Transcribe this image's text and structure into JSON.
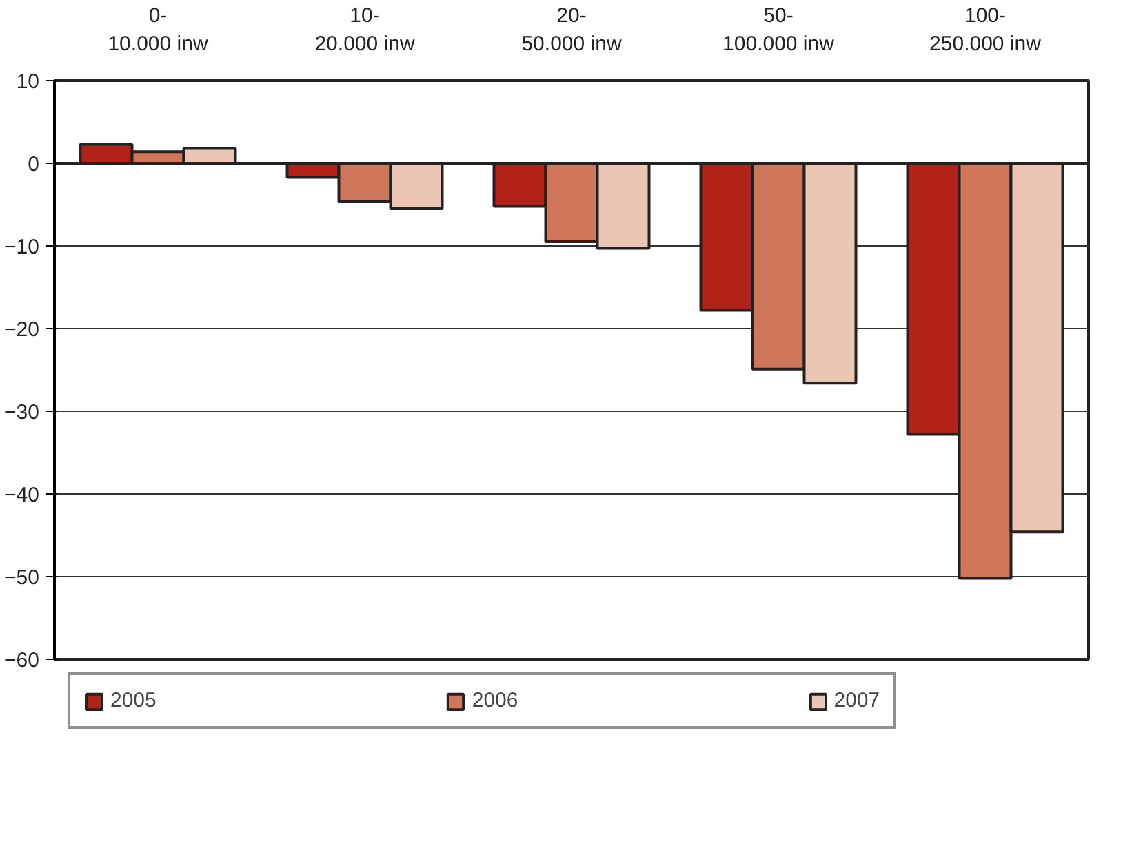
{
  "chart_data": {
    "type": "bar",
    "categories": [
      "0-\n10.000 inw",
      "10-\n20.000 inw",
      "20-\n50.000 inw",
      "50-\n100.000 inw",
      "100-\n250.000 inw"
    ],
    "series": [
      {
        "name": "2005",
        "color": "#b12318",
        "values": [
          2.3,
          -1.7,
          -5.2,
          -17.8,
          -32.8
        ]
      },
      {
        "name": "2006",
        "color": "#d0765a",
        "values": [
          1.4,
          -4.6,
          -9.5,
          -24.9,
          -50.2
        ]
      },
      {
        "name": "2007",
        "color": "#ecc6b4",
        "values": [
          1.8,
          -5.5,
          -10.3,
          -26.6,
          -44.6
        ]
      }
    ],
    "ylim": [
      -60,
      10
    ],
    "yticks": [
      -60,
      -50,
      -40,
      -30,
      -20,
      -10,
      0,
      10
    ],
    "grid": "y",
    "legend": "bottom"
  }
}
